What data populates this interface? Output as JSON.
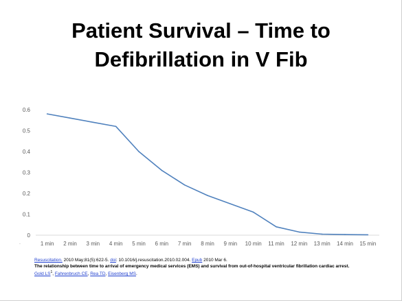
{
  "slide": {
    "title_line1": "Patient Survival – Time to",
    "title_line2": "Defibrillation in V Fib"
  },
  "chart_data": {
    "type": "line",
    "title": "Patient Survival – Time to Defibrillation in V Fib",
    "xlabel": "",
    "ylabel": "",
    "categories": [
      "1 min",
      "2 min",
      "3 min",
      "4 min",
      "5 min",
      "6 min",
      "7 min",
      "8 min",
      "9 min",
      "10 min",
      "11 min",
      "12 min",
      "13 min",
      "14 min",
      "15 min"
    ],
    "series": [
      {
        "values": [
          0.58,
          0.56,
          0.54,
          0.52,
          0.4,
          0.31,
          0.24,
          0.19,
          0.15,
          0.11,
          0.04,
          0.015,
          0.005,
          0.003,
          0.002
        ],
        "color": "#4f81bd"
      }
    ],
    "ylim": [
      0,
      0.6
    ],
    "yticks": [
      "0",
      "0.1",
      "0.2",
      "0.3",
      "0.4",
      "0.5",
      "0.6"
    ],
    "grid": false,
    "legend": "none"
  },
  "citation": {
    "journal": "Resuscitation.",
    "details": " 2010 May;81(5):622-5. ",
    "doi_label": "doi",
    "doi_value": ": 10.1016/j.resuscitation.2010.02.004. ",
    "epub_label": "Epub",
    "epub_date": " 2010 Mar 6.",
    "article_title": "The relationship between time to arrival of emergency medical services (EMS) and survival from out-of-hospital ventricular fibrillation cardiac arrest.",
    "authors": [
      "Gold LS",
      "Fahrenbruch CE",
      "Rea TD",
      "Eisenberg MS"
    ],
    "author_separator": ", ",
    "first_author_mark": "1",
    "end_mark": "."
  }
}
